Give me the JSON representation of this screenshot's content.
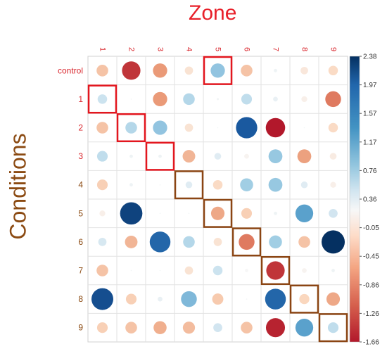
{
  "chart_data": {
    "type": "heatmap",
    "title": "",
    "xlabel": "Zone",
    "ylabel": "Conditions",
    "columns": [
      "1",
      "2",
      "3",
      "4",
      "5",
      "6",
      "7",
      "8",
      "9"
    ],
    "rows": [
      "control",
      "1",
      "2",
      "3",
      "4",
      "5",
      "6",
      "7",
      "8",
      "9"
    ],
    "values": [
      [
        -0.6,
        -1.5,
        -0.9,
        -0.3,
        0.9,
        -0.6,
        0.05,
        -0.25,
        -0.4
      ],
      [
        0.4,
        0.0,
        -0.9,
        0.6,
        0.02,
        0.5,
        0.1,
        -0.15,
        -1.1
      ],
      [
        -0.6,
        0.6,
        0.9,
        -0.3,
        0.0,
        2.0,
        -1.66,
        0.0,
        -0.4
      ],
      [
        0.5,
        0.05,
        0.05,
        -0.7,
        0.2,
        -0.1,
        0.85,
        -0.85,
        -0.2
      ],
      [
        -0.5,
        0.05,
        0.0,
        0.2,
        -0.4,
        0.75,
        0.85,
        0.2,
        -0.15
      ],
      [
        -0.15,
        2.2,
        0.0,
        0.0,
        -0.8,
        -0.5,
        0.05,
        1.4,
        0.35
      ],
      [
        0.3,
        -0.7,
        1.9,
        0.6,
        -0.3,
        -1.1,
        0.75,
        -0.6,
        2.38
      ],
      [
        -0.6,
        0.0,
        0.0,
        -0.3,
        0.4,
        -0.05,
        -1.5,
        -0.1,
        0.05
      ],
      [
        2.1,
        -0.5,
        0.1,
        1.1,
        -0.55,
        0.0,
        1.9,
        -0.45,
        -0.8
      ],
      [
        -0.5,
        -0.6,
        -0.75,
        -0.65,
        0.35,
        -0.6,
        -1.6,
        1.4,
        0.5
      ]
    ],
    "highlight_cells": [
      [
        0,
        4
      ],
      [
        1,
        0
      ],
      [
        2,
        1
      ],
      [
        3,
        2
      ],
      [
        4,
        3
      ],
      [
        5,
        4
      ],
      [
        6,
        5
      ],
      [
        7,
        6
      ],
      [
        8,
        7
      ],
      [
        9,
        8
      ]
    ],
    "colorbar": {
      "min": -1.66,
      "max": 2.38,
      "ticks": [
        "2.38",
        "1.97",
        "1.57",
        "1.17",
        "0.76",
        "0.36",
        "-0.05",
        "-0.45",
        "-0.86",
        "-1.26",
        "-1.66"
      ],
      "low_color": "#b2182b",
      "mid_color": "#f7f7f7",
      "high_color": "#053061"
    },
    "grid": true,
    "legend": "right"
  }
}
